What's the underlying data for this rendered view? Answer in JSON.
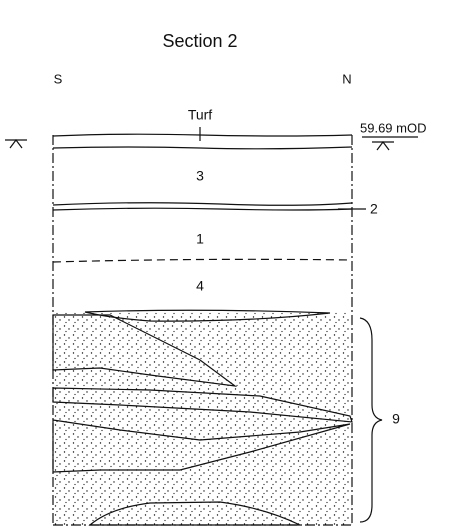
{
  "title": "Section 2",
  "orientation": {
    "left": "S",
    "right": "N"
  },
  "datum": "59.69 mOD",
  "layers": {
    "turf": "Turf",
    "layer_3": "3",
    "layer_2": "2",
    "layer_1": "1",
    "layer_4": "4",
    "layer_9": "9"
  }
}
